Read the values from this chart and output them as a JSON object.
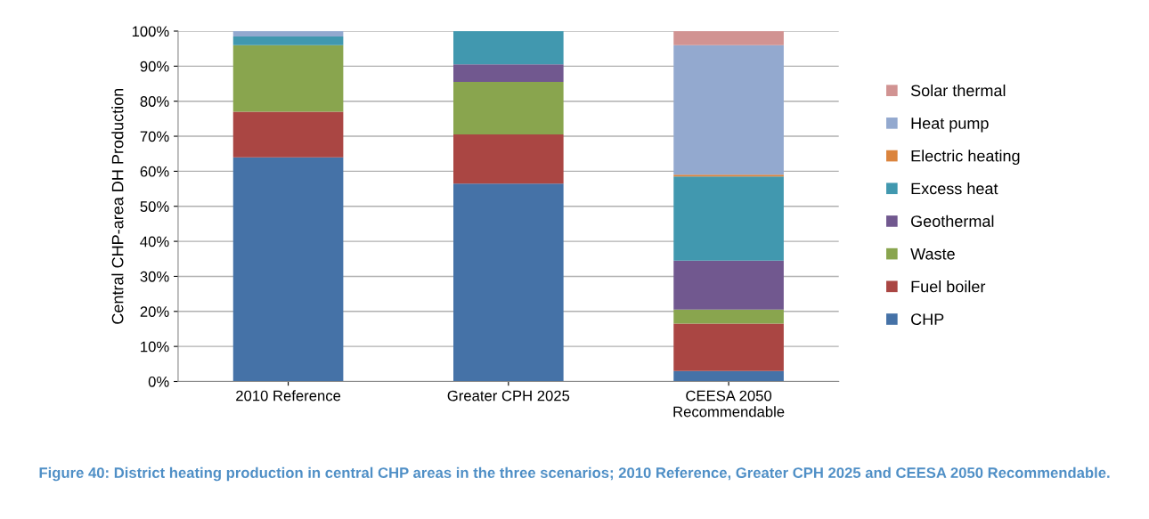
{
  "chart_data": {
    "type": "bar",
    "stacked": true,
    "ylabel": "Central CHP-area DH Production",
    "categories": [
      "2010 Reference",
      "Greater CPH 2025",
      "CEESA 2050\nRecommendable"
    ],
    "series": [
      {
        "name": "CHP",
        "color": "#4572a7",
        "values": [
          64,
          56.5,
          3
        ]
      },
      {
        "name": "Fuel boiler",
        "color": "#aa4643",
        "values": [
          13,
          14,
          13.5
        ]
      },
      {
        "name": "Waste",
        "color": "#89a54e",
        "values": [
          19,
          15,
          4
        ]
      },
      {
        "name": "Geothermal",
        "color": "#71588f",
        "values": [
          0,
          5,
          14
        ]
      },
      {
        "name": "Excess heat",
        "color": "#4198af",
        "values": [
          2.5,
          9.5,
          24
        ]
      },
      {
        "name": "Electric heating",
        "color": "#db843d",
        "values": [
          0,
          0,
          0.5
        ]
      },
      {
        "name": "Heat pump",
        "color": "#93a9cf",
        "values": [
          1.5,
          0,
          37
        ]
      },
      {
        "name": "Solar thermal",
        "color": "#d19392",
        "values": [
          0,
          0,
          4
        ]
      }
    ],
    "ylim": [
      0,
      100
    ],
    "yticks": [
      {
        "value": 0,
        "label": "0%"
      },
      {
        "value": 10,
        "label": "10%"
      },
      {
        "value": 20,
        "label": "20%"
      },
      {
        "value": 30,
        "label": "30%"
      },
      {
        "value": 40,
        "label": "40%"
      },
      {
        "value": 50,
        "label": "50%"
      },
      {
        "value": 60,
        "label": "60%"
      },
      {
        "value": 70,
        "label": "70%"
      },
      {
        "value": 80,
        "label": "80%"
      },
      {
        "value": 90,
        "label": "90%"
      },
      {
        "value": 100,
        "label": "100%"
      }
    ],
    "grid": "y",
    "legend": "right",
    "annotations": [
      "Figure 40: District heating production in central CHP areas in the three scenarios; 2010 Reference, Greater CPH 2025 and CEESA 2050 Recommendable."
    ]
  }
}
